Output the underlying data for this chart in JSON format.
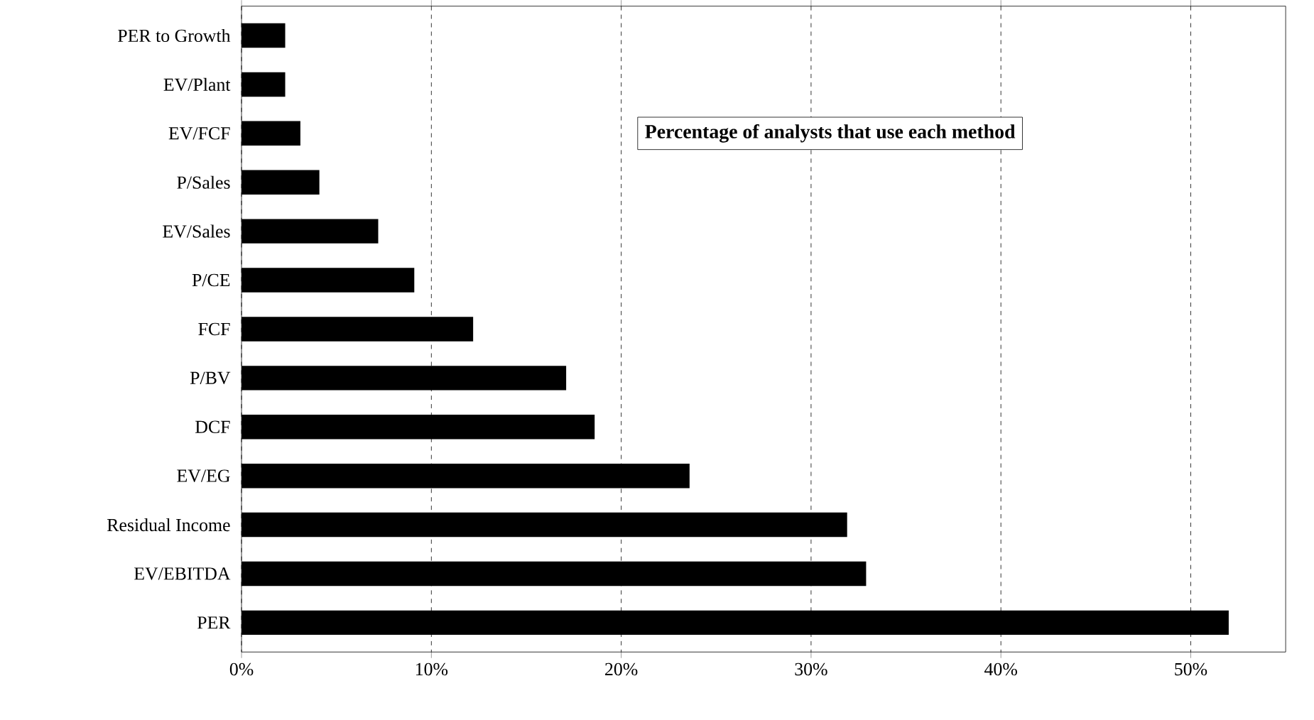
{
  "chart_data": {
    "type": "bar",
    "orientation": "horizontal",
    "title": "Percentage of analysts that use each method",
    "categories": [
      "PER to Growth",
      "EV/Plant",
      "EV/FCF",
      "P/Sales",
      "EV/Sales",
      "P/CE",
      "FCF",
      "P/BV",
      "DCF",
      "EV/EG",
      "Residual Income",
      "EV/EBITDA",
      "PER"
    ],
    "values": [
      2.3,
      2.3,
      3.1,
      4.1,
      7.2,
      9.1,
      12.2,
      17.1,
      18.6,
      23.6,
      31.9,
      32.9,
      52.0
    ],
    "color": "#000000",
    "xlim": [
      0,
      55
    ],
    "xticks": [
      {
        "value": 0,
        "label": "0%"
      },
      {
        "value": 10,
        "label": "10%"
      },
      {
        "value": 20,
        "label": "20%"
      },
      {
        "value": 30,
        "label": "30%"
      },
      {
        "value": 40,
        "label": "40%"
      },
      {
        "value": 50,
        "label": "50%"
      }
    ],
    "grid": "x"
  }
}
